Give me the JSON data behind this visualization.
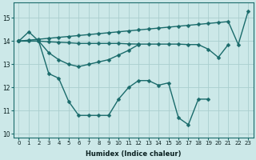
{
  "xlabel": "Humidex (Indice chaleur)",
  "bg_color": "#cce8e8",
  "grid_color": "#aacece",
  "line_color": "#1a6b6b",
  "line_width": 1.0,
  "marker_size": 2.5,
  "ylim": [
    9.85,
    15.65
  ],
  "yticks": [
    10,
    11,
    12,
    13,
    14,
    15
  ],
  "series1_x": [
    0,
    1,
    2,
    3,
    4,
    5,
    6,
    7,
    8,
    9,
    10,
    11,
    12,
    13,
    14,
    15,
    16,
    17,
    18,
    19
  ],
  "series1_y": [
    14.0,
    14.4,
    14.0,
    12.6,
    12.4,
    11.4,
    10.8,
    10.8,
    10.8,
    10.8,
    11.5,
    12.0,
    12.3,
    12.3,
    12.1,
    12.2,
    10.7,
    10.4,
    11.5,
    11.5
  ],
  "series2_x": [
    0,
    2,
    3,
    4,
    5,
    6,
    7,
    8,
    9,
    10,
    11,
    12,
    13,
    14,
    15,
    16,
    17,
    18,
    19,
    20,
    21
  ],
  "series2_y": [
    14.0,
    14.0,
    13.97,
    13.95,
    13.93,
    13.9,
    13.9,
    13.9,
    13.9,
    13.9,
    13.88,
    13.87,
    13.87,
    13.87,
    13.87,
    13.87,
    13.85,
    13.85,
    13.65,
    13.3,
    13.85
  ],
  "series3_x": [
    0,
    1,
    2,
    3,
    4,
    5,
    6,
    7,
    8,
    9,
    10,
    11,
    12,
    13,
    14,
    15,
    16,
    17,
    18,
    19,
    20,
    21,
    22,
    23
  ],
  "series3_y": [
    14.0,
    14.04,
    14.08,
    14.12,
    14.16,
    14.2,
    14.24,
    14.28,
    14.32,
    14.36,
    14.4,
    14.44,
    14.48,
    14.52,
    14.56,
    14.6,
    14.64,
    14.68,
    14.72,
    14.76,
    14.8,
    14.84,
    13.85,
    15.3
  ],
  "series4_x": [
    0,
    1,
    2,
    3,
    4,
    5,
    6,
    7,
    8,
    9,
    10,
    11,
    12
  ],
  "series4_y": [
    14.0,
    14.0,
    14.0,
    13.5,
    13.2,
    13.0,
    12.9,
    13.0,
    13.1,
    13.2,
    13.4,
    13.6,
    13.85
  ]
}
